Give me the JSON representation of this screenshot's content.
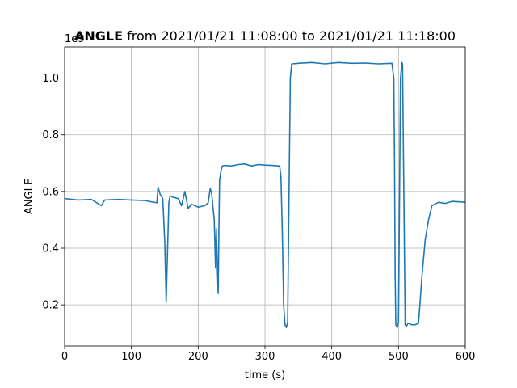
{
  "chart_data": {
    "type": "line",
    "title_bold": "ANGLE",
    "title_rest": " from 2021/01/21 11:08:00 to 2021/01/21 11:18:00",
    "xlabel": "time (s)",
    "ylabel": "ANGLE",
    "y_scale_label": "1e9",
    "xlim": [
      0,
      600
    ],
    "ylim": [
      55000000,
      1110000000
    ],
    "x_ticks": [
      0,
      100,
      200,
      300,
      400,
      500,
      600
    ],
    "x_tick_labels": [
      "0",
      "100",
      "200",
      "300",
      "400",
      "500",
      "600"
    ],
    "y_ticks": [
      200000000,
      400000000,
      600000000,
      800000000,
      1000000000
    ],
    "y_tick_labels": [
      "0.2",
      "0.4",
      "0.6",
      "0.8",
      "1.0"
    ],
    "grid": true,
    "series": [
      {
        "color": "#1f77b4",
        "x": [
          0,
          20,
          40,
          55,
          60,
          80,
          100,
          120,
          138,
          140,
          143,
          147,
          150,
          152,
          154,
          156,
          158,
          162,
          170,
          175,
          180,
          185,
          190,
          200,
          210,
          215,
          218,
          220,
          224,
          226,
          227,
          228,
          230,
          231,
          232,
          234,
          236,
          240,
          250,
          260,
          270,
          280,
          290,
          300,
          310,
          322,
          324,
          326,
          328,
          330,
          332,
          334,
          336,
          338,
          340,
          350,
          370,
          390,
          410,
          430,
          450,
          470,
          490,
          493,
          494,
          495,
          496,
          498,
          500,
          503,
          505,
          506,
          508,
          510,
          512,
          514,
          520,
          525,
          530,
          532,
          535,
          540,
          545,
          550,
          560,
          570,
          580,
          600
        ],
        "y": [
          575000000,
          570000000,
          572000000,
          550000000,
          570000000,
          572000000,
          570000000,
          568000000,
          560000000,
          615000000,
          590000000,
          575000000,
          420000000,
          210000000,
          380000000,
          560000000,
          585000000,
          580000000,
          575000000,
          550000000,
          600000000,
          540000000,
          555000000,
          545000000,
          550000000,
          560000000,
          610000000,
          595000000,
          500000000,
          330000000,
          470000000,
          390000000,
          240000000,
          470000000,
          640000000,
          670000000,
          690000000,
          692000000,
          690000000,
          695000000,
          697000000,
          690000000,
          695000000,
          693000000,
          692000000,
          690000000,
          650000000,
          450000000,
          200000000,
          130000000,
          120000000,
          140000000,
          600000000,
          1000000000,
          1050000000,
          1052000000,
          1055000000,
          1050000000,
          1055000000,
          1052000000,
          1053000000,
          1050000000,
          1052000000,
          1000000000,
          700000000,
          300000000,
          130000000,
          120000000,
          140000000,
          1000000000,
          1055000000,
          1050000000,
          600000000,
          130000000,
          125000000,
          135000000,
          130000000,
          130000000,
          135000000,
          200000000,
          300000000,
          430000000,
          500000000,
          550000000,
          562000000,
          558000000,
          565000000,
          562000000
        ]
      }
    ]
  }
}
